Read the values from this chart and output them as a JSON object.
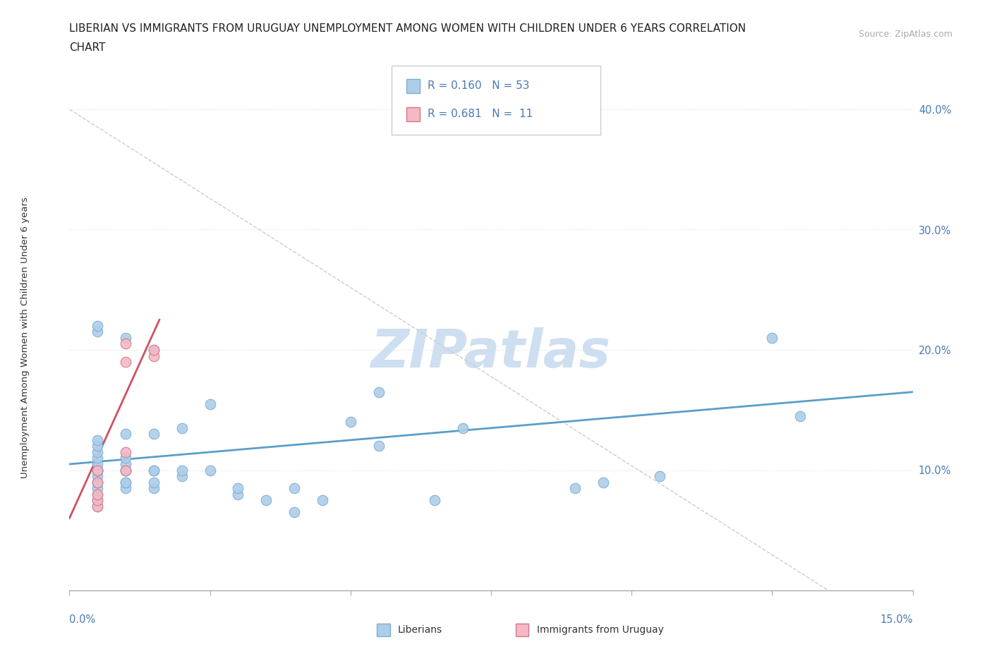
{
  "title_line1": "LIBERIAN VS IMMIGRANTS FROM URUGUAY UNEMPLOYMENT AMONG WOMEN WITH CHILDREN UNDER 6 YEARS CORRELATION",
  "title_line2": "CHART",
  "source": "Source: ZipAtlas.com",
  "ylabel": "Unemployment Among Women with Children Under 6 years",
  "xlim": [
    0.0,
    0.15
  ],
  "ylim": [
    0.0,
    0.42
  ],
  "yticks": [
    0.0,
    0.1,
    0.2,
    0.3,
    0.4
  ],
  "ytick_labels": [
    "",
    "10.0%",
    "20.0%",
    "30.0%",
    "40.0%"
  ],
  "xticks": [
    0.0,
    0.025,
    0.05,
    0.075,
    0.1,
    0.125,
    0.15
  ],
  "R_liberian": 0.16,
  "N_liberian": 53,
  "R_uruguay": 0.681,
  "N_uruguay": 11,
  "color_liberian": "#aecde8",
  "color_liberian_edge": "#7bafd4",
  "color_uruguay": "#f5b8c4",
  "color_uruguay_edge": "#d07888",
  "color_liberian_line": "#5b9ec9",
  "color_uruguay_line": "#d05060",
  "watermark_color": "#cddff0",
  "diag_color": "#cccccc",
  "liberian_x": [
    0.005,
    0.005,
    0.005,
    0.005,
    0.005,
    0.005,
    0.005,
    0.005,
    0.005,
    0.005,
    0.005,
    0.005,
    0.005,
    0.005,
    0.005,
    0.005,
    0.005,
    0.01,
    0.01,
    0.01,
    0.01,
    0.01,
    0.01,
    0.01,
    0.01,
    0.01,
    0.015,
    0.015,
    0.015,
    0.015,
    0.015,
    0.015,
    0.02,
    0.02,
    0.02,
    0.025,
    0.025,
    0.03,
    0.03,
    0.035,
    0.04,
    0.04,
    0.045,
    0.05,
    0.055,
    0.055,
    0.065,
    0.07,
    0.09,
    0.095,
    0.105,
    0.125,
    0.13
  ],
  "liberian_y": [
    0.07,
    0.075,
    0.08,
    0.085,
    0.09,
    0.09,
    0.095,
    0.1,
    0.1,
    0.1,
    0.105,
    0.11,
    0.115,
    0.12,
    0.125,
    0.215,
    0.22,
    0.085,
    0.09,
    0.09,
    0.1,
    0.1,
    0.105,
    0.11,
    0.13,
    0.21,
    0.085,
    0.09,
    0.1,
    0.1,
    0.13,
    0.2,
    0.095,
    0.1,
    0.135,
    0.1,
    0.155,
    0.08,
    0.085,
    0.075,
    0.065,
    0.085,
    0.075,
    0.14,
    0.12,
    0.165,
    0.075,
    0.135,
    0.085,
    0.09,
    0.095,
    0.21,
    0.145
  ],
  "uruguay_x": [
    0.005,
    0.005,
    0.005,
    0.005,
    0.005,
    0.01,
    0.01,
    0.01,
    0.01,
    0.015,
    0.015
  ],
  "uruguay_y": [
    0.07,
    0.075,
    0.08,
    0.09,
    0.1,
    0.1,
    0.115,
    0.19,
    0.205,
    0.195,
    0.2
  ],
  "blue_line_x": [
    0.0,
    0.15
  ],
  "blue_line_y": [
    0.105,
    0.165
  ],
  "pink_line_x": [
    0.0,
    0.016
  ],
  "pink_line_y": [
    0.06,
    0.225
  ],
  "diag_line_x": [
    0.0,
    0.135
  ],
  "diag_line_y": [
    0.4,
    0.0
  ]
}
